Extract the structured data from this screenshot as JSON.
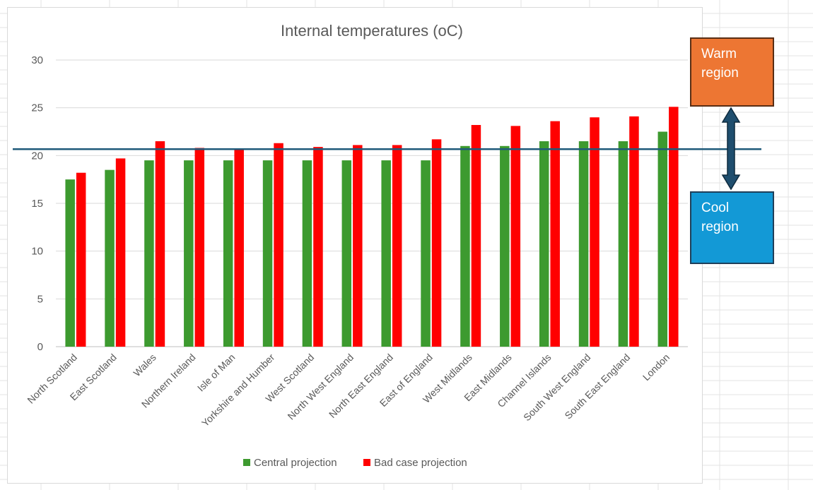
{
  "chart_data": {
    "type": "bar",
    "title": "Internal temperatures (oC)",
    "xlabel": "",
    "ylabel": "",
    "ylim": [
      0,
      30
    ],
    "yticks": [
      "0",
      "5",
      "10",
      "15",
      "20",
      "25",
      "30"
    ],
    "grid": true,
    "legend_position": "bottom",
    "categories": [
      "North Scotland",
      "East Scotland",
      "Wales",
      "Northern Ireland",
      "Isle of Man",
      "Yorkshire and Humber",
      "West Scotland",
      "North West England",
      "North East England",
      "East of England",
      "West Midlands",
      "East Midlands",
      "Channel Islands",
      "South West England",
      "South East England",
      "London"
    ],
    "series": [
      {
        "name": "Central projection",
        "color": "#3d9a2f",
        "values": [
          17.5,
          18.5,
          19.5,
          19.5,
          19.5,
          19.5,
          19.5,
          19.5,
          19.5,
          19.5,
          21.0,
          21.0,
          21.5,
          21.5,
          21.5,
          22.5
        ]
      },
      {
        "name": "Bad case projection",
        "color": "#ff0000",
        "values": [
          18.2,
          19.7,
          21.5,
          20.8,
          20.6,
          21.3,
          20.9,
          21.1,
          21.1,
          21.7,
          23.2,
          23.1,
          23.6,
          24.0,
          24.1,
          25.1
        ]
      }
    ],
    "reference_line": {
      "value": 20.6,
      "color": "#1f5a7a"
    }
  },
  "annotations": {
    "warm_label": "Warm\nregion",
    "warm_color": "#ed7633",
    "cool_label": "Cool\nregion",
    "cool_color": "#1399d6",
    "arrow_color": "#1f4e6e"
  }
}
